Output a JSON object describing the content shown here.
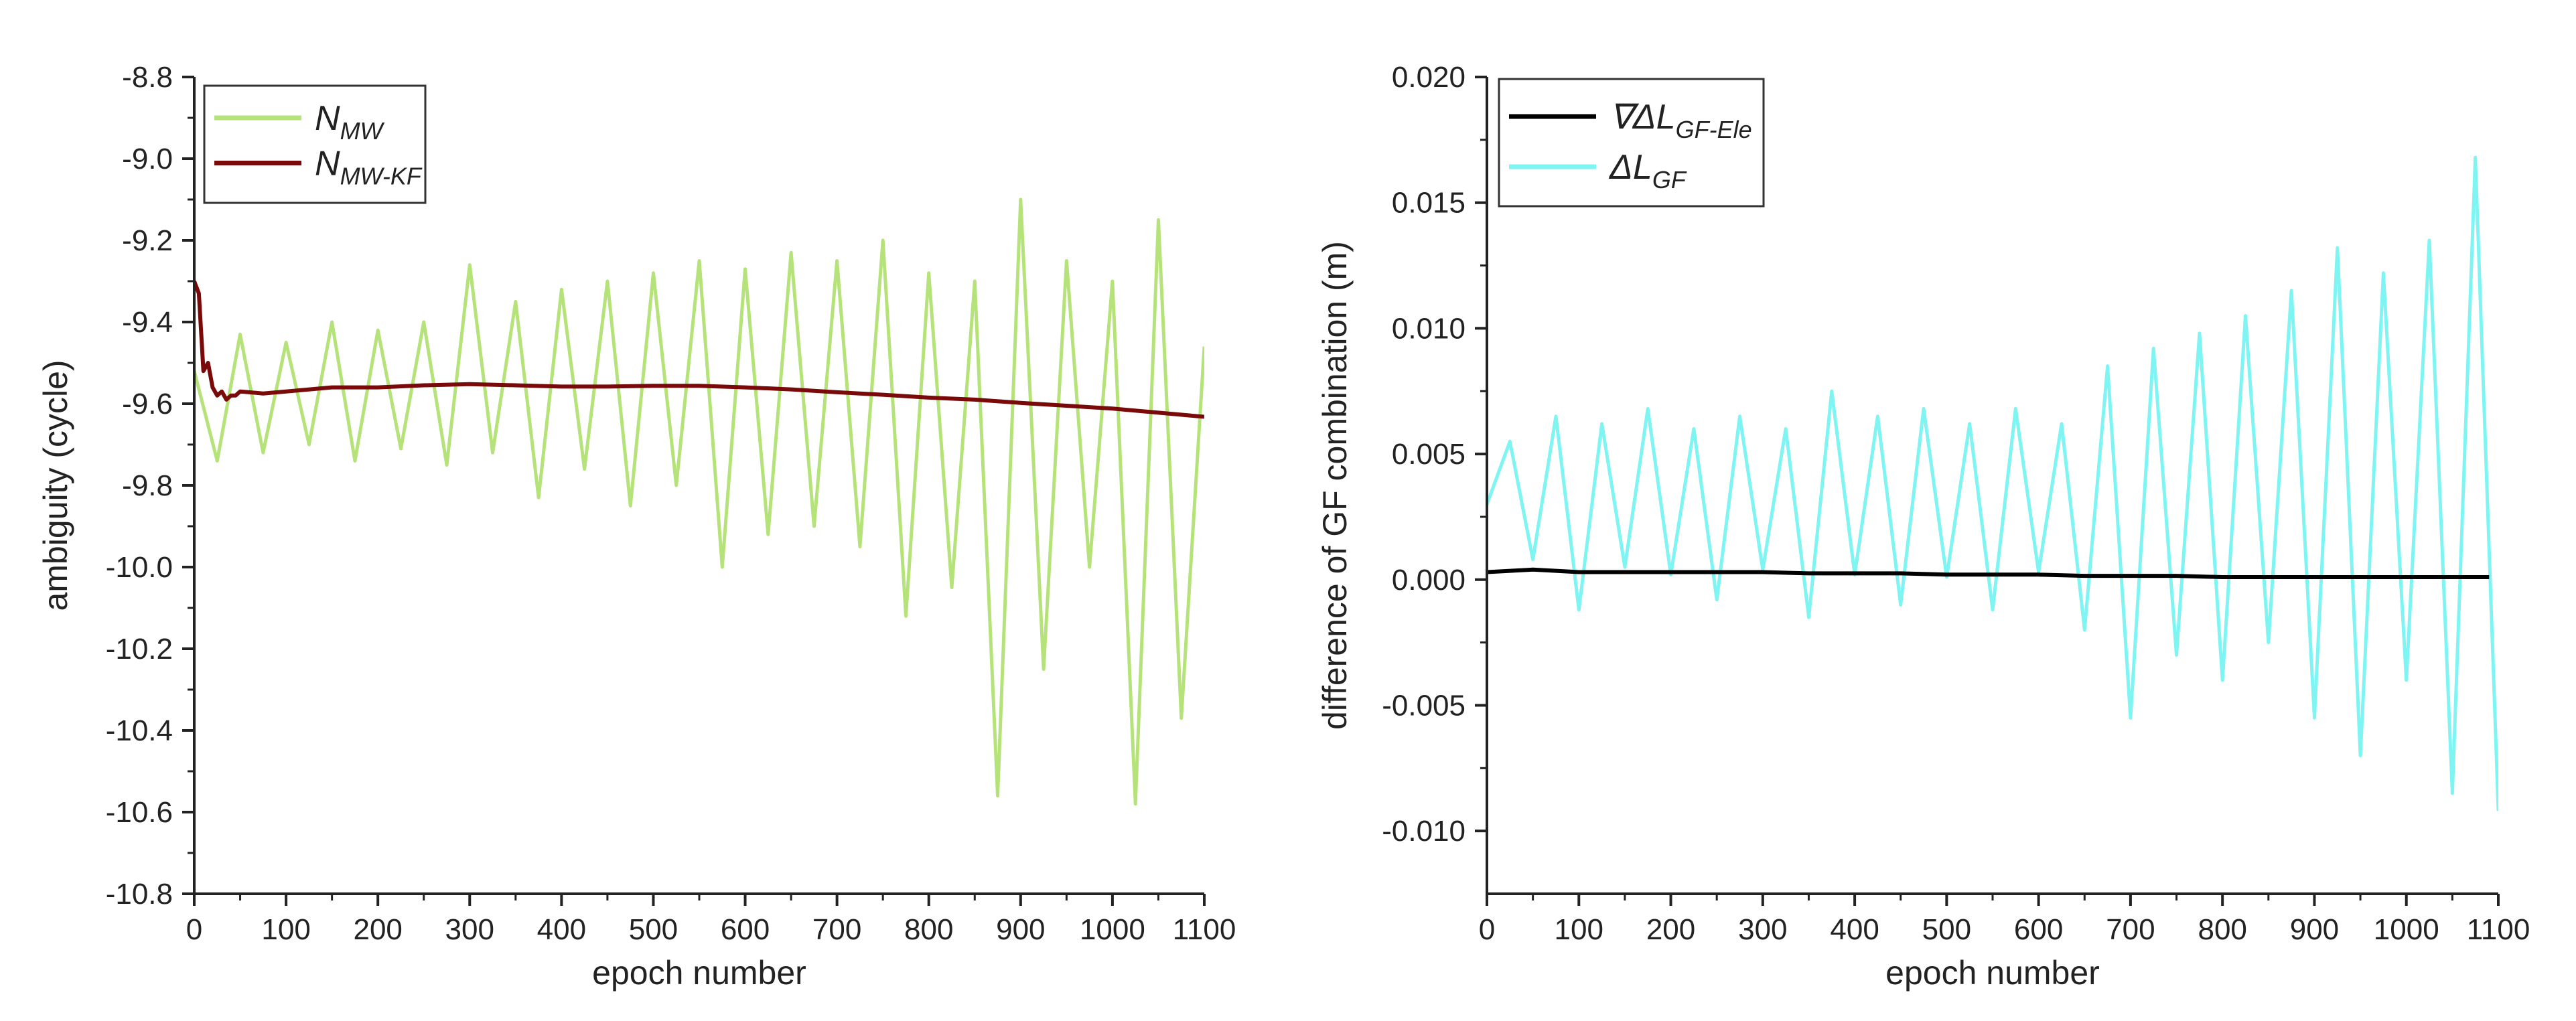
{
  "chart_data": [
    {
      "type": "line",
      "xlabel": "epoch number",
      "ylabel": "ambiguity (cycle)",
      "xlim": [
        0,
        1100
      ],
      "ylim": [
        -10.8,
        -8.8
      ],
      "xticks": [
        0,
        100,
        200,
        300,
        400,
        500,
        600,
        700,
        800,
        900,
        1000,
        1100
      ],
      "xtick_labels": [
        "0",
        "100",
        "200",
        "300",
        "400",
        "500",
        "600",
        "700",
        "800",
        "900",
        "1000",
        "1100"
      ],
      "yticks": [
        -8.8,
        -9.0,
        -9.2,
        -9.4,
        -9.6,
        -9.8,
        -10.0,
        -10.2,
        -10.4,
        -10.6,
        -10.8
      ],
      "ytick_labels": [
        "-8.8",
        "-9.0",
        "-9.2",
        "-9.4",
        "-9.6",
        "-9.8",
        "-10.0",
        "-10.2",
        "-10.4",
        "-10.6",
        "-10.8"
      ],
      "legend_position": "top-left",
      "series": [
        {
          "name": "N_MW",
          "legend_main": "N",
          "legend_sub": "MW",
          "color": "#b5e37a",
          "x": [
            0,
            25,
            50,
            75,
            100,
            125,
            150,
            175,
            200,
            225,
            250,
            275,
            300,
            325,
            350,
            375,
            400,
            425,
            450,
            475,
            500,
            525,
            550,
            575,
            600,
            625,
            650,
            675,
            700,
            725,
            750,
            775,
            800,
            825,
            850,
            875,
            900,
            925,
            950,
            975,
            1000,
            1025,
            1050,
            1075,
            1100
          ],
          "values": [
            -9.52,
            -9.74,
            -9.43,
            -9.72,
            -9.45,
            -9.7,
            -9.4,
            -9.74,
            -9.42,
            -9.71,
            -9.4,
            -9.75,
            -9.26,
            -9.72,
            -9.35,
            -9.83,
            -9.32,
            -9.76,
            -9.3,
            -9.85,
            -9.28,
            -9.8,
            -9.25,
            -10.0,
            -9.27,
            -9.92,
            -9.23,
            -9.9,
            -9.25,
            -9.95,
            -9.2,
            -10.12,
            -9.28,
            -10.05,
            -9.3,
            -10.56,
            -9.1,
            -10.25,
            -9.25,
            -10.0,
            -9.3,
            -10.58,
            -9.15,
            -10.37,
            -9.46
          ]
        },
        {
          "name": "N_MW-KF",
          "legend_main": "N",
          "legend_sub": "MW-KF",
          "color": "#7a0a0a",
          "x": [
            0,
            5,
            10,
            15,
            20,
            25,
            30,
            35,
            40,
            45,
            50,
            75,
            100,
            150,
            200,
            250,
            300,
            350,
            400,
            450,
            500,
            550,
            600,
            650,
            700,
            750,
            800,
            850,
            900,
            950,
            1000,
            1050,
            1100
          ],
          "values": [
            -9.3,
            -9.33,
            -9.52,
            -9.5,
            -9.56,
            -9.58,
            -9.57,
            -9.59,
            -9.58,
            -9.58,
            -9.57,
            -9.575,
            -9.57,
            -9.56,
            -9.56,
            -9.555,
            -9.552,
            -9.555,
            -9.558,
            -9.558,
            -9.556,
            -9.556,
            -9.56,
            -9.565,
            -9.572,
            -9.578,
            -9.585,
            -9.59,
            -9.598,
            -9.605,
            -9.612,
            -9.622,
            -9.632
          ]
        }
      ]
    },
    {
      "type": "line",
      "xlabel": "epoch number",
      "ylabel": "difference of GF combination (m)",
      "xlim": [
        0,
        1100
      ],
      "ylim": [
        -0.0125,
        0.02
      ],
      "xticks": [
        0,
        100,
        200,
        300,
        400,
        500,
        600,
        700,
        800,
        900,
        1000,
        1100
      ],
      "xtick_labels": [
        "0",
        "100",
        "200",
        "300",
        "400",
        "500",
        "600",
        "700",
        "800",
        "900",
        "1000",
        "1100"
      ],
      "yticks": [
        0.02,
        0.015,
        0.01,
        0.005,
        0.0,
        -0.005,
        -0.01
      ],
      "ytick_labels": [
        "0.020",
        "0.015",
        "0.010",
        "0.005",
        "0.000",
        "-0.005",
        "-0.010"
      ],
      "legend_position": "top-left",
      "series": [
        {
          "name": "∇ΔL_GF-Ele",
          "legend_main": "∇ΔL",
          "legend_sub": "GF-Ele",
          "color": "#000000",
          "x": [
            0,
            50,
            100,
            150,
            200,
            250,
            300,
            350,
            400,
            450,
            500,
            550,
            600,
            650,
            700,
            750,
            800,
            850,
            900,
            950,
            1000,
            1050,
            1090
          ],
          "values": [
            0.0003,
            0.0004,
            0.0003,
            0.0003,
            0.0003,
            0.0003,
            0.0003,
            0.00025,
            0.00025,
            0.00025,
            0.0002,
            0.0002,
            0.0002,
            0.00015,
            0.00015,
            0.00015,
            0.0001,
            0.0001,
            0.0001,
            0.0001,
            0.0001,
            0.0001,
            0.0001
          ]
        },
        {
          "name": "ΔL_GF",
          "legend_main": "ΔL",
          "legend_sub": "GF",
          "color": "#7ef5f2",
          "x": [
            0,
            25,
            50,
            75,
            100,
            125,
            150,
            175,
            200,
            225,
            250,
            275,
            300,
            325,
            350,
            375,
            400,
            425,
            450,
            475,
            500,
            525,
            550,
            575,
            600,
            625,
            650,
            675,
            700,
            725,
            750,
            775,
            800,
            825,
            850,
            875,
            900,
            925,
            950,
            975,
            1000,
            1025,
            1050,
            1075,
            1100
          ],
          "values": [
            0.003,
            0.0055,
            0.0008,
            0.0065,
            -0.0012,
            0.0062,
            0.0005,
            0.0068,
            0.0002,
            0.006,
            -0.0008,
            0.0065,
            0.0004,
            0.006,
            -0.0015,
            0.0075,
            0.0002,
            0.0065,
            -0.001,
            0.0068,
            0.0001,
            0.0062,
            -0.0012,
            0.0068,
            0.0003,
            0.0062,
            -0.002,
            0.0085,
            -0.0055,
            0.0092,
            -0.003,
            0.0098,
            -0.004,
            0.0105,
            -0.0025,
            0.0115,
            -0.0055,
            0.0132,
            -0.007,
            0.0122,
            -0.004,
            0.0135,
            -0.0085,
            0.0168,
            -0.0092
          ]
        }
      ]
    }
  ]
}
